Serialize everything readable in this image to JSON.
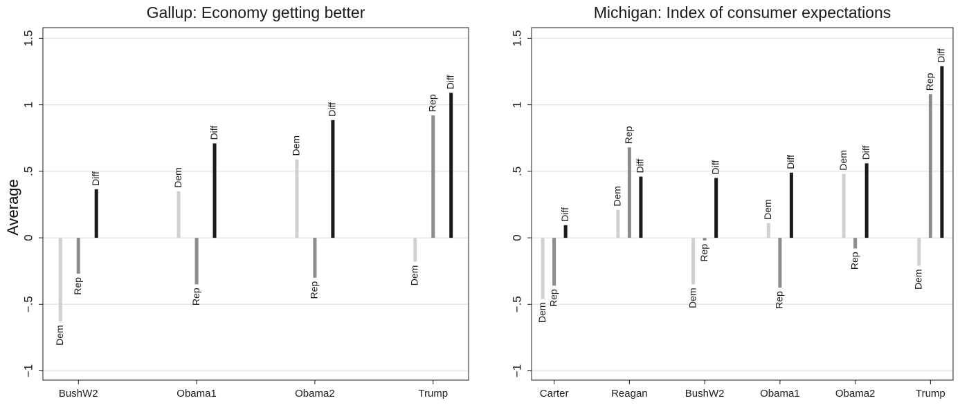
{
  "chart_data": [
    {
      "type": "bar",
      "title": "Gallup: Economy getting better",
      "ylabel": "Average",
      "categories": [
        "BushW2",
        "Obama1",
        "Obama2",
        "Trump"
      ],
      "series": [
        {
          "name": "Dem",
          "color": "#d0d0d0",
          "values": [
            -0.63,
            0.35,
            0.59,
            -0.18
          ]
        },
        {
          "name": "Rep",
          "color": "#8c8c8c",
          "values": [
            -0.27,
            -0.35,
            -0.3,
            0.92
          ]
        },
        {
          "name": "Diff",
          "color": "#1a1a1a",
          "values": [
            0.365,
            0.71,
            0.885,
            1.09
          ]
        }
      ],
      "ylim": [
        -1.07,
        1.58
      ],
      "yticks": [
        {
          "value": -1,
          "label": "−1"
        },
        {
          "value": -0.5,
          "label": "−.5"
        },
        0,
        {
          "value": 0.5,
          "label": ".5"
        },
        1,
        1.5
      ],
      "grid": true
    },
    {
      "type": "bar",
      "title": "Michigan: Index of consumer expectations",
      "ylabel": "Average",
      "categories": [
        "Carter",
        "Reagan",
        "BushW2",
        "Obama1",
        "Obama2",
        "Trump"
      ],
      "series": [
        {
          "name": "Dem",
          "color": "#d0d0d0",
          "values": [
            -0.46,
            0.21,
            -0.35,
            0.11,
            0.48,
            -0.21
          ]
        },
        {
          "name": "Rep",
          "color": "#8c8c8c",
          "values": [
            -0.36,
            0.68,
            -0.02,
            -0.375,
            -0.08,
            1.08
          ]
        },
        {
          "name": "Diff",
          "color": "#1a1a1a",
          "values": [
            0.095,
            0.46,
            0.45,
            0.49,
            0.56,
            1.29
          ]
        }
      ],
      "ylim": [
        -1.07,
        1.58
      ],
      "yticks": [
        {
          "value": -1,
          "label": "−1"
        },
        {
          "value": -0.5,
          "label": "−.5"
        },
        0,
        {
          "value": 0.5,
          "label": ".5"
        },
        1,
        1.5
      ],
      "grid": true
    }
  ]
}
